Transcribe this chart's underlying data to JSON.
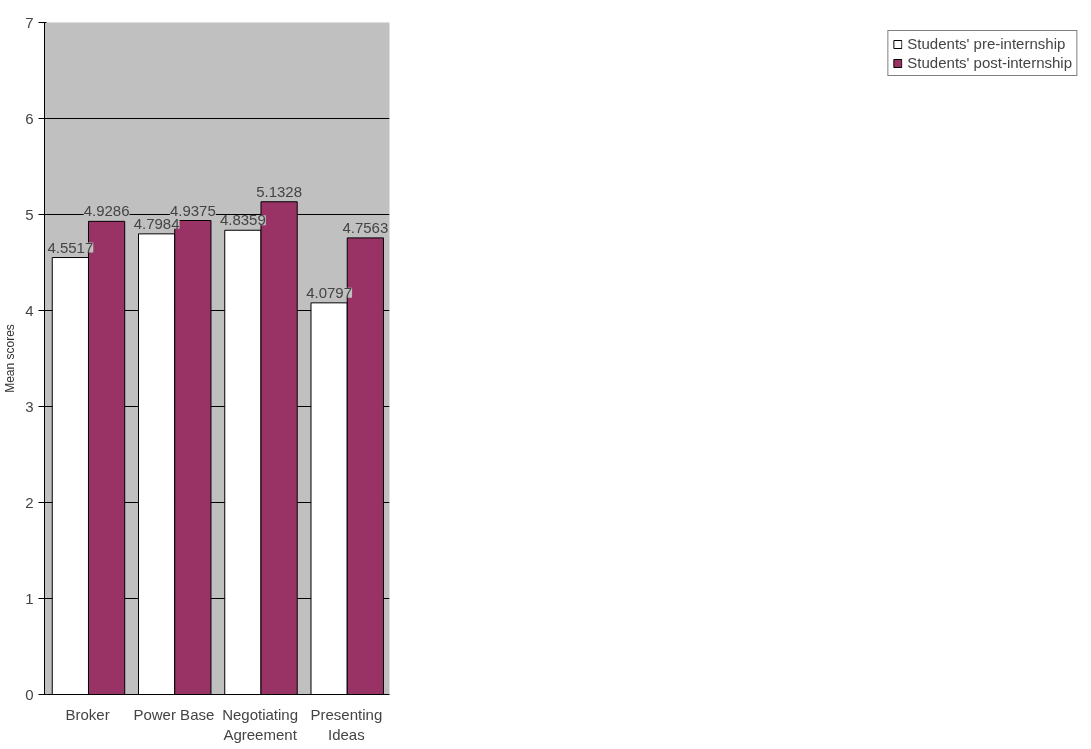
{
  "chart_data": {
    "type": "bar",
    "ylabel": "Mean scores",
    "categories": [
      "Broker",
      "Power Base",
      "Negotiating Agreement",
      "Presenting Ideas"
    ],
    "series": [
      {
        "name": "Students' pre-internship",
        "color": "#ffffff",
        "values": [
          4.5517,
          4.7984,
          4.8359,
          4.0797
        ]
      },
      {
        "name": "Students' post-internship",
        "color": "#993366",
        "values": [
          4.9286,
          4.9375,
          5.1328,
          4.7563
        ]
      }
    ],
    "ylim": [
      0,
      7
    ],
    "yticks": [
      0,
      1,
      2,
      3,
      4,
      5,
      6,
      7
    ],
    "grid": "y",
    "legend": "right",
    "data_labels": true
  }
}
